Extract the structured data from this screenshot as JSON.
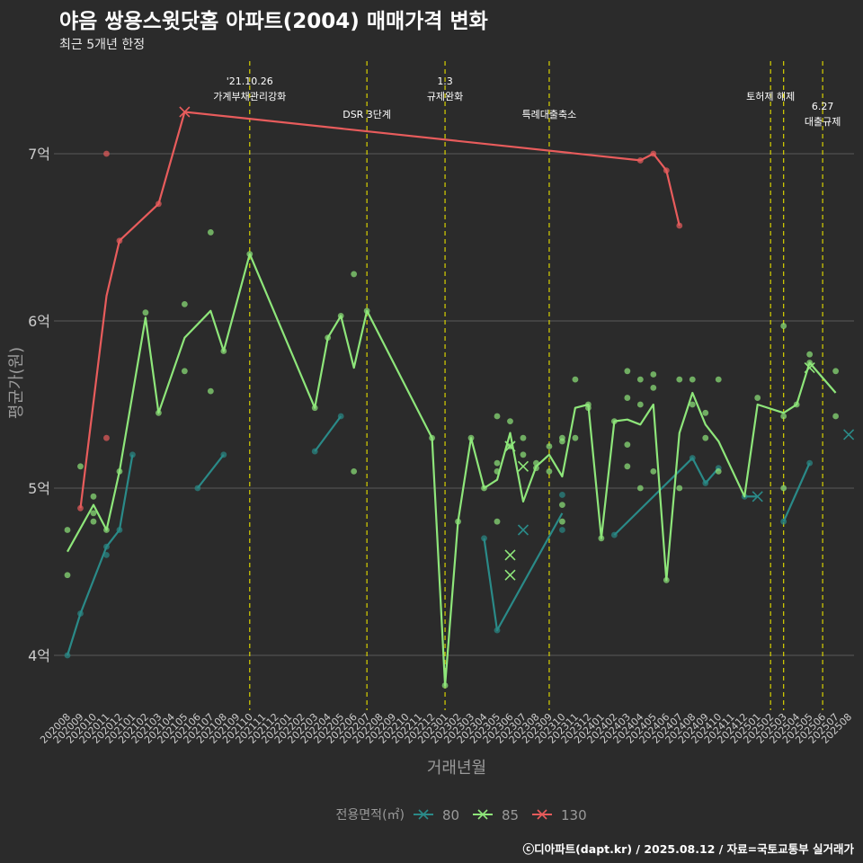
{
  "title": "야음 쌍용스윗닷홈 아파트(2004) 매매가격 변화",
  "subtitle": "최근 5개년 한정",
  "caption": "ⓒ디아파트(dapt.kr) / 2025.08.12 / 자료=국토교통부 실거래가",
  "colors": {
    "background": "#2b2b2b",
    "grid": "#5a5a5a",
    "tick_text": "#cccccc",
    "axis_title": "#9a9a9a",
    "event_line": "#d8d200",
    "series": {
      "80": "#2a8a88",
      "85": "#8ee67a",
      "130": "#e85c5c"
    }
  },
  "chart_data": {
    "type": "line",
    "xlabel": "거래년월",
    "ylabel": "평균가(원)",
    "ylim": [
      3.7,
      7.5
    ],
    "yticks": [
      4,
      5,
      6,
      7
    ],
    "ytick_labels": [
      "4억",
      "5억",
      "6억",
      "7억"
    ],
    "x": [
      "202008",
      "202009",
      "202010",
      "202011",
      "202012",
      "202101",
      "202102",
      "202103",
      "202104",
      "202105",
      "202106",
      "202107",
      "202108",
      "202109",
      "202110",
      "202111",
      "202112",
      "202201",
      "202202",
      "202203",
      "202204",
      "202205",
      "202206",
      "202207",
      "202208",
      "202209",
      "202210",
      "202211",
      "202212",
      "202301",
      "202302",
      "202303",
      "202304",
      "202305",
      "202306",
      "202307",
      "202308",
      "202309",
      "202310",
      "202311",
      "202312",
      "202401",
      "202402",
      "202403",
      "202404",
      "202405",
      "202406",
      "202407",
      "202408",
      "202409",
      "202410",
      "202411",
      "202412",
      "202501",
      "202502",
      "202503",
      "202504",
      "202505",
      "202506",
      "202507",
      "202508"
    ],
    "grid": true,
    "legend": {
      "position": "bottom",
      "title": "전용면적(㎡)",
      "entries": [
        "80",
        "85",
        "130"
      ]
    },
    "events": [
      {
        "x": "202110",
        "label_lines": [
          "'21.10.26",
          "가계부채관리강화"
        ],
        "level": 0
      },
      {
        "x": "202207",
        "label_lines": [
          "DSR 3단계"
        ],
        "level": 2
      },
      {
        "x": "202301",
        "label_lines": [
          "1.3",
          "규제완화"
        ],
        "level": 0
      },
      {
        "x": "202309",
        "label_lines": [
          "특례대출축소"
        ],
        "level": 2
      },
      {
        "x": "202502",
        "label_lines": [
          "토허제 해제"
        ],
        "level": 1
      },
      {
        "x": "202503",
        "label_lines": [],
        "level": 1
      },
      {
        "x": "202506",
        "label_lines": [
          "6.27",
          "대출규제"
        ],
        "level": 3
      }
    ],
    "series": [
      {
        "name": "80",
        "line_segments": [
          [
            [
              "202008",
              4.0
            ],
            [
              "202009",
              4.25
            ],
            [
              "202011",
              4.65
            ],
            [
              "202012",
              4.75
            ],
            [
              "202101",
              5.2
            ]
          ],
          [
            [
              "202106",
              5.0
            ],
            [
              "202108",
              5.2
            ]
          ],
          [
            [
              "202203",
              5.22
            ],
            [
              "202205",
              5.43
            ]
          ],
          [
            [
              "202304",
              4.7
            ],
            [
              "202305",
              4.15
            ],
            [
              "202310",
              4.85
            ]
          ],
          [
            [
              "202402",
              4.72
            ],
            [
              "202408",
              5.18
            ],
            [
              "202409",
              5.03
            ],
            [
              "202410",
              5.12
            ]
          ],
          [
            [
              "202412",
              4.95
            ],
            [
              "202501",
              4.95
            ]
          ],
          [
            [
              "202503",
              4.8
            ],
            [
              "202505",
              5.15
            ]
          ]
        ],
        "points": [
          [
            "202008",
            4.0
          ],
          [
            "202009",
            4.25
          ],
          [
            "202011",
            4.6
          ],
          [
            "202011",
            4.65
          ],
          [
            "202012",
            4.75
          ],
          [
            "202101",
            5.2
          ],
          [
            "202106",
            5.0
          ],
          [
            "202108",
            5.2
          ],
          [
            "202203",
            5.22
          ],
          [
            "202205",
            5.43
          ],
          [
            "202304",
            4.7
          ],
          [
            "202305",
            4.15
          ],
          [
            "202310",
            4.96
          ],
          [
            "202310",
            4.75
          ],
          [
            "202402",
            4.72
          ],
          [
            "202408",
            5.18
          ],
          [
            "202409",
            5.03
          ],
          [
            "202410",
            5.12
          ],
          [
            "202412",
            4.95
          ],
          [
            "202503",
            4.8
          ],
          [
            "202505",
            5.15
          ]
        ],
        "x_marks": [
          [
            "202306",
            5.25
          ],
          [
            "202307",
            4.75
          ],
          [
            "202501",
            4.95
          ],
          [
            "202508",
            5.32
          ]
        ]
      },
      {
        "name": "85",
        "line_segments": [
          [
            [
              "202008",
              4.62
            ],
            [
              "202010",
              4.9
            ],
            [
              "202011",
              4.75
            ],
            [
              "202012",
              5.1
            ],
            [
              "202102",
              6.02
            ],
            [
              "202103",
              5.45
            ],
            [
              "202105",
              5.9
            ],
            [
              "202107",
              6.06
            ],
            [
              "202108",
              5.82
            ],
            [
              "202110",
              6.4
            ],
            [
              "202203",
              5.48
            ],
            [
              "202204",
              5.9
            ],
            [
              "202205",
              6.03
            ],
            [
              "202206",
              5.72
            ],
            [
              "202207",
              6.06
            ],
            [
              "202212",
              5.3
            ],
            [
              "202301",
              3.82
            ],
            [
              "202302",
              4.8
            ],
            [
              "202303",
              5.3
            ],
            [
              "202304",
              5.0
            ],
            [
              "202305",
              5.05
            ],
            [
              "202306",
              5.33
            ],
            [
              "202307",
              4.92
            ],
            [
              "202308",
              5.13
            ],
            [
              "202309",
              5.2
            ],
            [
              "202310",
              5.07
            ],
            [
              "202311",
              5.48
            ],
            [
              "202312",
              5.5
            ],
            [
              "202401",
              4.7
            ],
            [
              "202402",
              5.4
            ],
            [
              "202403",
              5.41
            ],
            [
              "202404",
              5.38
            ],
            [
              "202405",
              5.5
            ],
            [
              "202406",
              4.45
            ],
            [
              "202407",
              5.33
            ],
            [
              "202408",
              5.57
            ],
            [
              "202409",
              5.38
            ],
            [
              "202410",
              5.28
            ],
            [
              "202412",
              4.95
            ],
            [
              "202501",
              5.5
            ],
            [
              "202503",
              5.45
            ],
            [
              "202504",
              5.5
            ],
            [
              "202505",
              5.75
            ],
            [
              "202507",
              5.57
            ]
          ]
        ],
        "points": [
          [
            "202008",
            4.75
          ],
          [
            "202008",
            4.48
          ],
          [
            "202009",
            5.13
          ],
          [
            "202010",
            4.95
          ],
          [
            "202010",
            4.85
          ],
          [
            "202010",
            4.8
          ],
          [
            "202011",
            4.75
          ],
          [
            "202012",
            5.1
          ],
          [
            "202102",
            6.05
          ],
          [
            "202103",
            5.45
          ],
          [
            "202105",
            6.1
          ],
          [
            "202105",
            5.7
          ],
          [
            "202107",
            6.53
          ],
          [
            "202107",
            5.58
          ],
          [
            "202108",
            5.82
          ],
          [
            "202110",
            6.4
          ],
          [
            "202203",
            5.48
          ],
          [
            "202204",
            5.9
          ],
          [
            "202205",
            6.03
          ],
          [
            "202206",
            6.28
          ],
          [
            "202206",
            5.1
          ],
          [
            "202207",
            6.06
          ],
          [
            "202212",
            5.3
          ],
          [
            "202301",
            3.82
          ],
          [
            "202302",
            4.8
          ],
          [
            "202303",
            5.3
          ],
          [
            "202304",
            5.0
          ],
          [
            "202305",
            5.15
          ],
          [
            "202305",
            5.1
          ],
          [
            "202305",
            4.8
          ],
          [
            "202305",
            5.43
          ],
          [
            "202306",
            5.4
          ],
          [
            "202306",
            5.25
          ],
          [
            "202307",
            5.3
          ],
          [
            "202307",
            5.2
          ],
          [
            "202308",
            5.15
          ],
          [
            "202308",
            5.12
          ],
          [
            "202309",
            5.25
          ],
          [
            "202309",
            5.1
          ],
          [
            "202310",
            4.9
          ],
          [
            "202310",
            4.8
          ],
          [
            "202310",
            5.28
          ],
          [
            "202310",
            5.3
          ],
          [
            "202311",
            5.65
          ],
          [
            "202311",
            5.3
          ],
          [
            "202312",
            5.48
          ],
          [
            "202312",
            5.5
          ],
          [
            "202401",
            4.7
          ],
          [
            "202402",
            5.4
          ],
          [
            "202403",
            5.7
          ],
          [
            "202403",
            5.54
          ],
          [
            "202403",
            5.26
          ],
          [
            "202403",
            5.13
          ],
          [
            "202404",
            5.65
          ],
          [
            "202404",
            5.5
          ],
          [
            "202404",
            5.0
          ],
          [
            "202405",
            5.68
          ],
          [
            "202405",
            5.6
          ],
          [
            "202405",
            5.1
          ],
          [
            "202406",
            4.45
          ],
          [
            "202407",
            5.65
          ],
          [
            "202407",
            5.0
          ],
          [
            "202408",
            5.65
          ],
          [
            "202408",
            5.5
          ],
          [
            "202409",
            5.45
          ],
          [
            "202409",
            5.3
          ],
          [
            "202410",
            5.65
          ],
          [
            "202410",
            5.1
          ],
          [
            "202501",
            5.54
          ],
          [
            "202503",
            5.97
          ],
          [
            "202503",
            5.43
          ],
          [
            "202503",
            5.0
          ],
          [
            "202504",
            5.5
          ],
          [
            "202505",
            5.8
          ],
          [
            "202505",
            5.75
          ],
          [
            "202507",
            5.7
          ],
          [
            "202507",
            5.43
          ]
        ],
        "x_marks": [
          [
            "202306",
            4.6
          ],
          [
            "202306",
            4.48
          ],
          [
            "202306",
            5.25
          ],
          [
            "202307",
            5.13
          ],
          [
            "202505",
            5.72
          ]
        ]
      },
      {
        "name": "130",
        "line_segments": [
          [
            [
              "202009",
              4.88
            ],
            [
              "202011",
              6.15
            ],
            [
              "202012",
              6.48
            ],
            [
              "202103",
              6.7
            ],
            [
              "202105",
              7.25
            ],
            [
              "202404",
              6.96
            ],
            [
              "202405",
              7.0
            ],
            [
              "202406",
              6.9
            ],
            [
              "202407",
              6.57
            ]
          ]
        ],
        "points": [
          [
            "202009",
            4.88
          ],
          [
            "202011",
            7.0
          ],
          [
            "202011",
            5.3
          ],
          [
            "202012",
            6.48
          ],
          [
            "202103",
            6.7
          ],
          [
            "202404",
            6.96
          ],
          [
            "202405",
            7.0
          ],
          [
            "202406",
            6.9
          ],
          [
            "202407",
            6.57
          ]
        ],
        "x_marks": [
          [
            "202105",
            7.25
          ]
        ]
      }
    ]
  }
}
